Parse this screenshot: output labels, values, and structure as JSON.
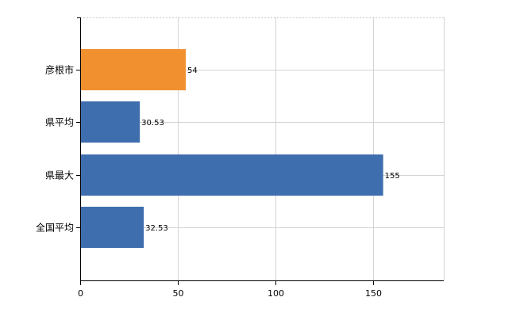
{
  "chart_data": {
    "type": "bar",
    "orientation": "horizontal",
    "categories": [
      "彦根市",
      "県平均",
      "県最大",
      "全国平均"
    ],
    "values": [
      54,
      30.53,
      155,
      32.53
    ],
    "value_labels": [
      "54",
      "30.53",
      "155",
      "32.53"
    ],
    "bar_colors": [
      "#F0902F",
      "#3F6EAE",
      "#3F6EAE",
      "#3F6EAE"
    ],
    "xlim": [
      0,
      186
    ],
    "x_ticks": [
      0,
      50,
      100,
      150
    ],
    "title": "",
    "xlabel": "",
    "ylabel": "",
    "grid": true,
    "legend": "none"
  }
}
